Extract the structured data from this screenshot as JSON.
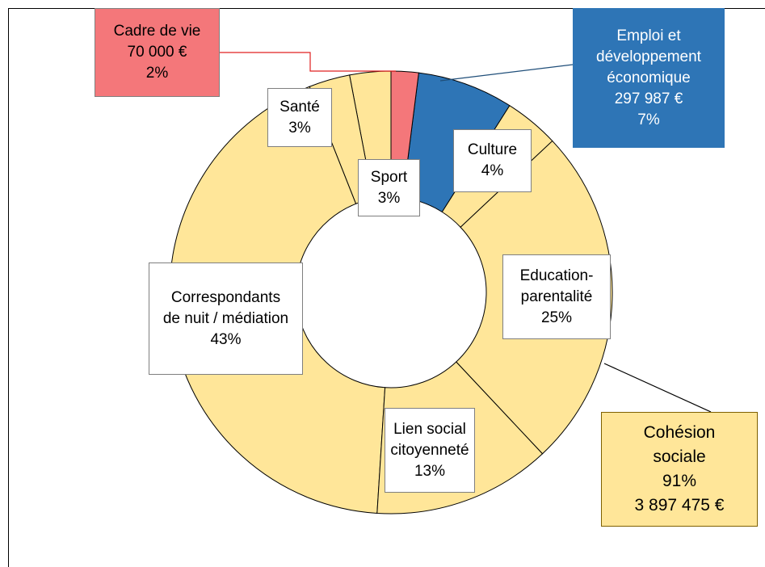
{
  "chart_data": {
    "type": "donut",
    "categories": [
      "Cadre de vie",
      "Emploi et développement économique",
      "Culture",
      "Education-parentalité",
      "Lien social citoyenneté",
      "Correspondants de nuit / médiation",
      "Santé",
      "Sport"
    ],
    "values": [
      2,
      7,
      4,
      25,
      13,
      43,
      3,
      3
    ],
    "value_labels": [
      "2%",
      "7%",
      "4%",
      "25%",
      "13%",
      "43%",
      "3%",
      "3%"
    ],
    "amounts": [
      70000,
      297987,
      null,
      null,
      null,
      null,
      null,
      null
    ],
    "amount_labels": [
      "70 000 €",
      "297 987 €",
      null,
      null,
      null,
      null,
      null,
      null
    ],
    "colors": [
      "#f4777a",
      "#2e75b6",
      "#ffe699",
      "#ffe699",
      "#ffe699",
      "#ffe699",
      "#ffe699",
      "#ffe699"
    ],
    "group": {
      "name": "Cohésion sociale",
      "value": 91,
      "value_label": "91%",
      "amount": 3897475,
      "amount_label": "3 897 475 €",
      "color": "#ffe699"
    }
  }
}
